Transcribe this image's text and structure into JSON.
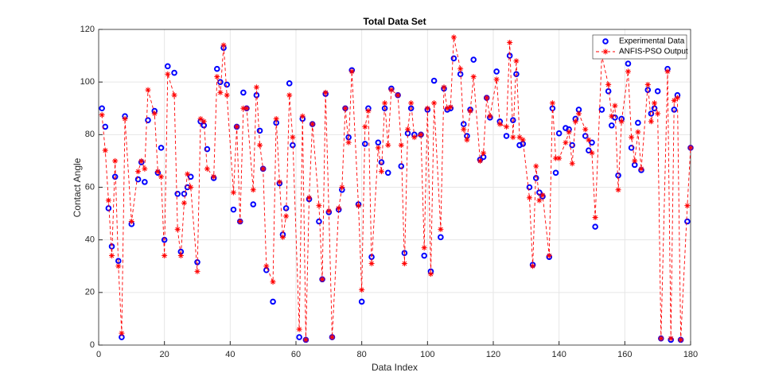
{
  "chart_data": {
    "type": "line",
    "title": "Total Data Set",
    "x_label": "Data Index",
    "y_label": "Contact Angle",
    "x": [
      1,
      2,
      3,
      4,
      5,
      6,
      7,
      8,
      10,
      12,
      13,
      14,
      15,
      17,
      18,
      19,
      20,
      21,
      23,
      24,
      25,
      26,
      27,
      28,
      30,
      31,
      32,
      33,
      35,
      36,
      37,
      38,
      39,
      41,
      42,
      43,
      44,
      45,
      47,
      48,
      49,
      50,
      51,
      53,
      54,
      55,
      56,
      57,
      58,
      59,
      61,
      62,
      63,
      64,
      65,
      67,
      68,
      69,
      70,
      71,
      73,
      74,
      75,
      76,
      77,
      79,
      80,
      81,
      82,
      83,
      85,
      86,
      87,
      88,
      89,
      91,
      92,
      93,
      94,
      95,
      96,
      98,
      99,
      100,
      101,
      102,
      104,
      105,
      106,
      107,
      108,
      110,
      111,
      112,
      113,
      114,
      116,
      117,
      118,
      119,
      121,
      122,
      124,
      125,
      126,
      127,
      128,
      129,
      131,
      132,
      133,
      134,
      135,
      137,
      138,
      139,
      140,
      142,
      143,
      144,
      145,
      146,
      148,
      149,
      150,
      151,
      153,
      155,
      156,
      157,
      158,
      159,
      161,
      162,
      163,
      164,
      165,
      167,
      168,
      169,
      170,
      171,
      173,
      174,
      175,
      176,
      177,
      179,
      180
    ],
    "series": [
      {
        "name": "Experimental Data",
        "color": "#0000ff",
        "marker": "circle",
        "linestyle": "none",
        "values": [
          90,
          83,
          52,
          37.5,
          64,
          32,
          3,
          87,
          46,
          63,
          69.5,
          62,
          85.5,
          89,
          65.5,
          75,
          40,
          106,
          103.5,
          57.5,
          35.5,
          57.5,
          60,
          64,
          31.5,
          85,
          83.5,
          74.5,
          63.5,
          105,
          100,
          113,
          99,
          51.5,
          83,
          47,
          96,
          90,
          53.5,
          95,
          81.5,
          67,
          28.5,
          16.5,
          84.5,
          61.5,
          42,
          52,
          99.5,
          76,
          3,
          86,
          2,
          55.5,
          84,
          47,
          25,
          95.5,
          50.5,
          3,
          51.5,
          59,
          90,
          79,
          104.5,
          53.5,
          16.5,
          76.5,
          90,
          33.5,
          77,
          69.5,
          90,
          65.5,
          97.5,
          95,
          68,
          35,
          80.5,
          90,
          80,
          80,
          34,
          89.5,
          28,
          100.5,
          41,
          97.5,
          89.5,
          90,
          109,
          103,
          84,
          79.5,
          89.5,
          108.5,
          70.5,
          71.5,
          94,
          86.5,
          104,
          85,
          79.5,
          110,
          85.5,
          103,
          76,
          76.5,
          60,
          30.5,
          63.5,
          58,
          56.5,
          33.5,
          90,
          65.5,
          80.5,
          82.5,
          82,
          76,
          86,
          89.5,
          79.5,
          74,
          77,
          45,
          89.5,
          96.5,
          83.5,
          86.5,
          64.5,
          86,
          107,
          75,
          68.5,
          84.5,
          66.5,
          97,
          88,
          90,
          96.5,
          2.5,
          105,
          2,
          89.5,
          95,
          2,
          47,
          75
        ]
      },
      {
        "name": "ANFIS-PSO Output",
        "color": "#ff0000",
        "marker": "asterisk",
        "linestyle": "dashed",
        "values": [
          87.5,
          74,
          55,
          34,
          70,
          30,
          4.5,
          86,
          47,
          66,
          70,
          67,
          97,
          88,
          66,
          64,
          34,
          103,
          95,
          44,
          34,
          54,
          65,
          60,
          28,
          86,
          85,
          67,
          64,
          102,
          96,
          114,
          95,
          58,
          83,
          47,
          90,
          90,
          59,
          98,
          76,
          67,
          30,
          24,
          86,
          62,
          41,
          49,
          95,
          79,
          6,
          87,
          2,
          56,
          84,
          53,
          25,
          96,
          51,
          3,
          52,
          60,
          90,
          77,
          104,
          53,
          21,
          83,
          89,
          31,
          75,
          66,
          92,
          76,
          97,
          95,
          76,
          31,
          82,
          92,
          79,
          80,
          37,
          90,
          27,
          92,
          44,
          98,
          90,
          90.5,
          117,
          105,
          82,
          78,
          89,
          102,
          70,
          73,
          94,
          87,
          101,
          84,
          83,
          115,
          79,
          108,
          79,
          78,
          56,
          30,
          68,
          55,
          57,
          34,
          92,
          71,
          71,
          77,
          81,
          69,
          85,
          88,
          82,
          78,
          73,
          48.5,
          110,
          99,
          87,
          91,
          59,
          85,
          104,
          79,
          70,
          81,
          67,
          99,
          85,
          92,
          88,
          2.5,
          104,
          2.5,
          93,
          94,
          2,
          53,
          75
        ]
      }
    ],
    "xlim": [
      0,
      180
    ],
    "xticks": [
      0,
      20,
      40,
      60,
      80,
      100,
      120,
      140,
      160,
      180
    ],
    "ylim": [
      0,
      120
    ],
    "yticks": [
      0,
      20,
      40,
      60,
      80,
      100,
      120
    ],
    "grid": true,
    "legend": "northeast"
  }
}
